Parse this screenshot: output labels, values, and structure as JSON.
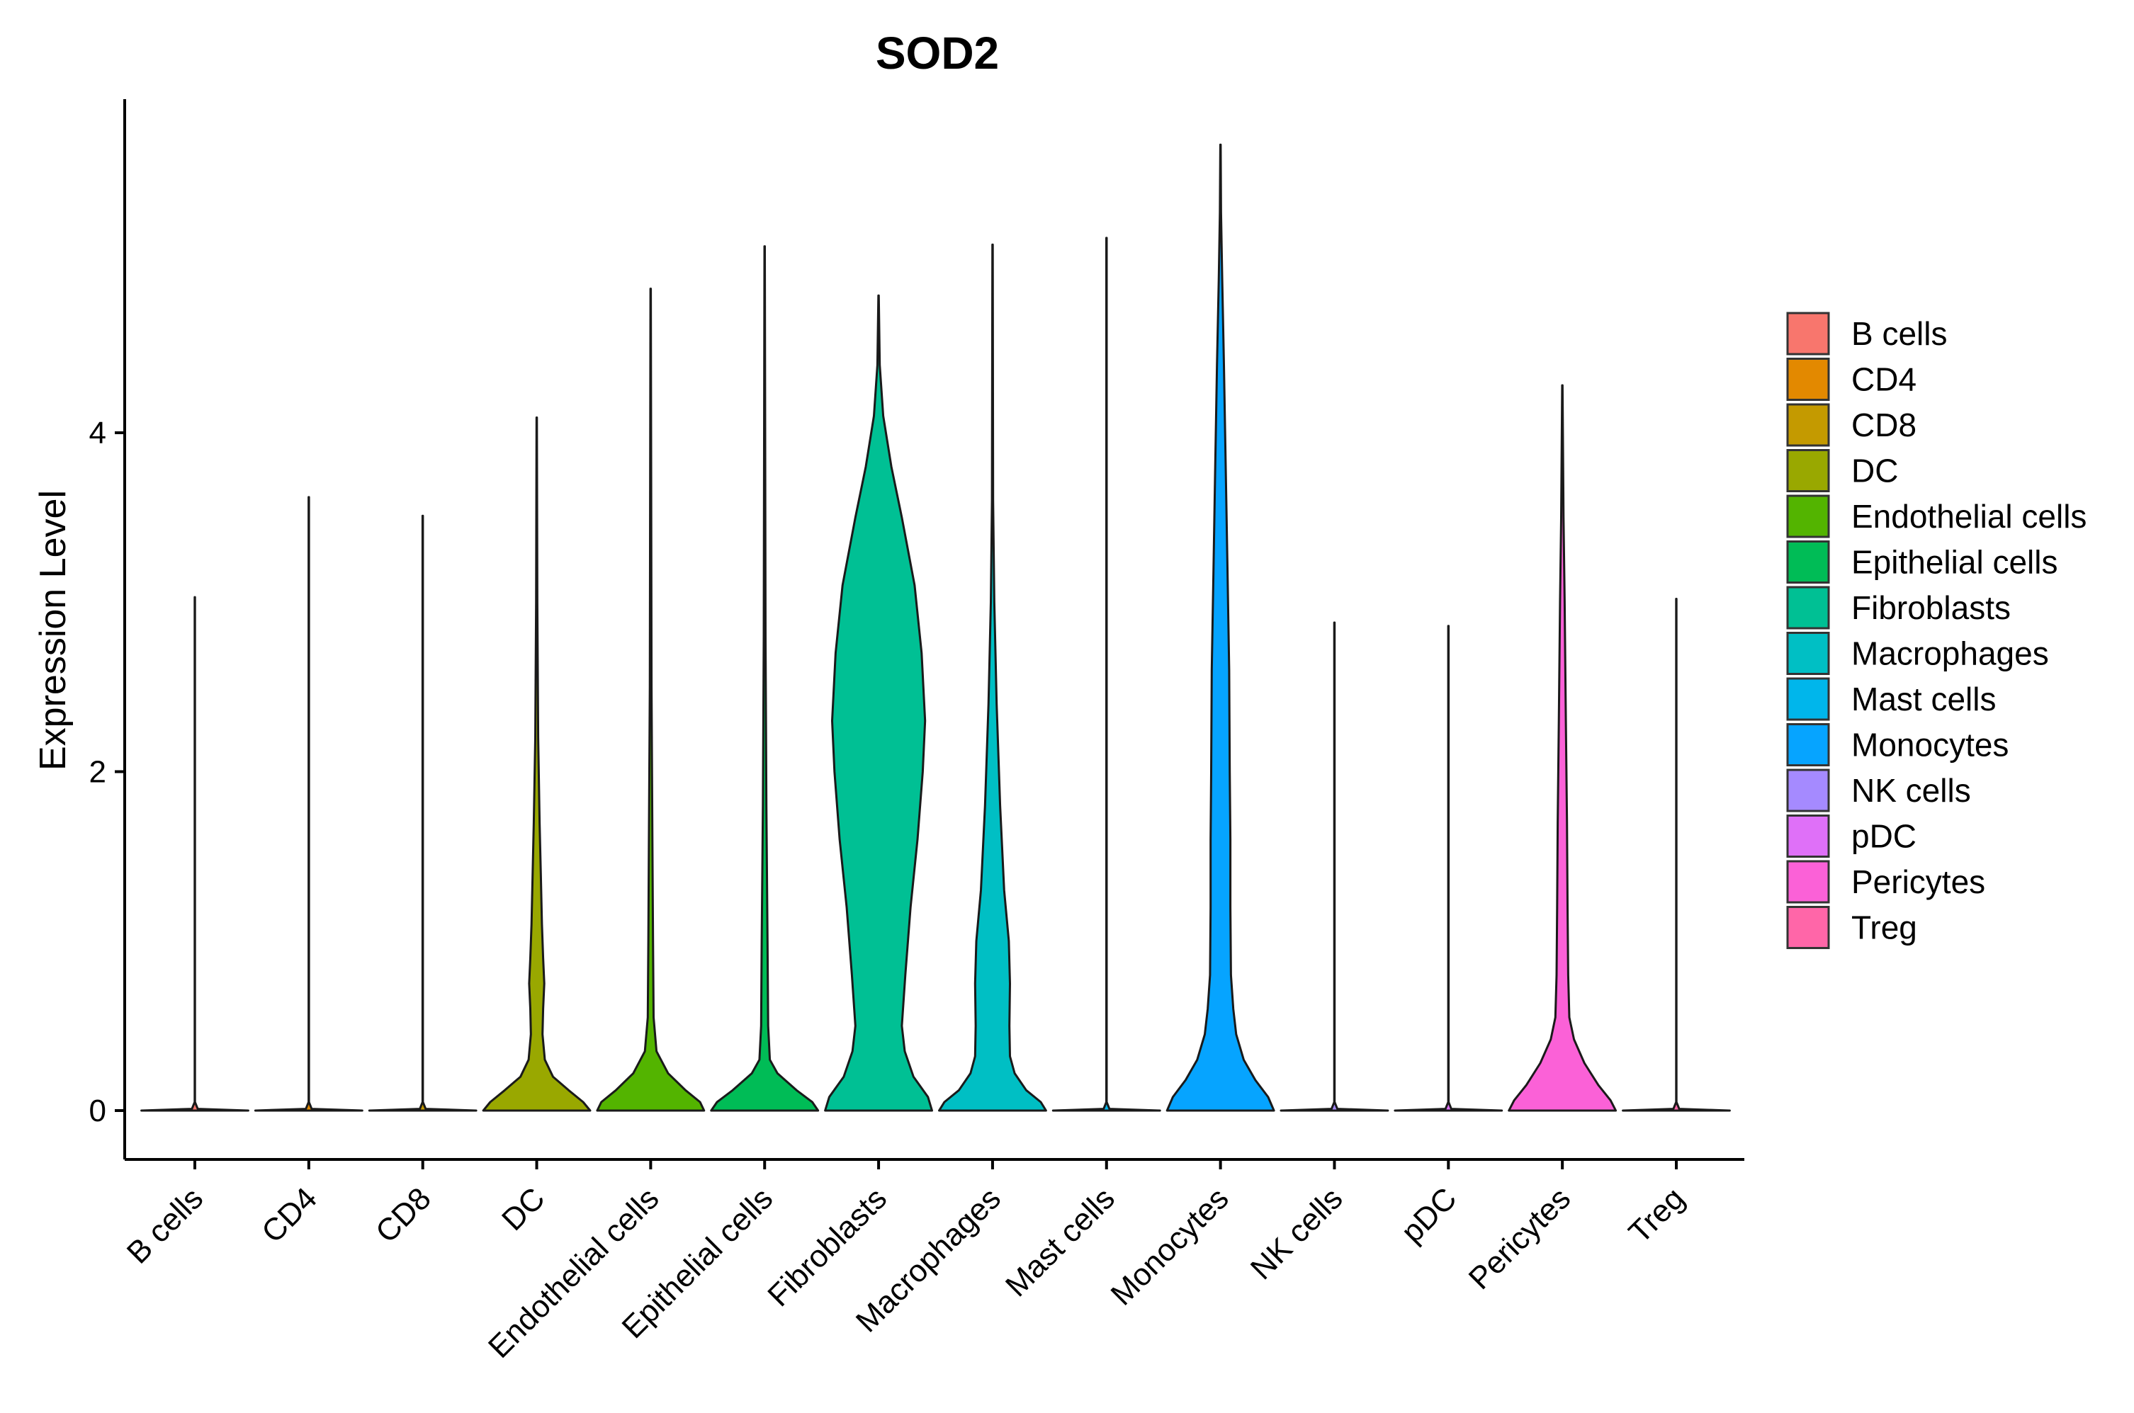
{
  "chart_data": {
    "type": "violin",
    "title": "SOD2",
    "xlabel": "",
    "ylabel": "Expression Level",
    "ylim": [
      -0.28,
      5.9
    ],
    "yticks": [
      0,
      2,
      4
    ],
    "legend_position": "right",
    "categories": [
      "B cells",
      "CD4",
      "CD8",
      "DC",
      "Endothelial cells",
      "Epithelial cells",
      "Fibroblasts",
      "Macrophages",
      "Mast cells",
      "Monocytes",
      "NK cells",
      "pDC",
      "Pericytes",
      "Treg"
    ],
    "colors": [
      "#F8766D",
      "#E38900",
      "#C49A00",
      "#99A800",
      "#53B400",
      "#00BC56",
      "#00C094",
      "#00BFC4",
      "#00B6EB",
      "#06A4FF",
      "#A58AFF",
      "#DF70F8",
      "#FB61D7",
      "#FF66A8"
    ],
    "series": [
      {
        "name": "B cells",
        "max": 3.03,
        "density": [
          [
            0,
            0.92
          ],
          [
            0.01,
            0.05
          ],
          [
            0.05,
            0.003
          ],
          [
            3.03,
            0.003
          ]
        ]
      },
      {
        "name": "CD4",
        "max": 3.62,
        "density": [
          [
            0,
            0.92
          ],
          [
            0.01,
            0.05
          ],
          [
            0.05,
            0.003
          ],
          [
            3.62,
            0.003
          ]
        ]
      },
      {
        "name": "CD8",
        "max": 3.51,
        "density": [
          [
            0,
            0.92
          ],
          [
            0.01,
            0.05
          ],
          [
            0.05,
            0.003
          ],
          [
            3.51,
            0.003
          ]
        ]
      },
      {
        "name": "DC",
        "max": 4.09,
        "density": [
          [
            0,
            0.92
          ],
          [
            0.05,
            0.8
          ],
          [
            0.12,
            0.55
          ],
          [
            0.2,
            0.28
          ],
          [
            0.3,
            0.14
          ],
          [
            0.45,
            0.1
          ],
          [
            0.6,
            0.11
          ],
          [
            0.75,
            0.13
          ],
          [
            0.9,
            0.11
          ],
          [
            1.1,
            0.09
          ],
          [
            1.4,
            0.07
          ],
          [
            1.7,
            0.05
          ],
          [
            2.2,
            0.025
          ],
          [
            3.0,
            0.01
          ],
          [
            4.09,
            0.003
          ]
        ]
      },
      {
        "name": "Endothelial cells",
        "max": 4.85,
        "density": [
          [
            0,
            0.92
          ],
          [
            0.05,
            0.85
          ],
          [
            0.12,
            0.6
          ],
          [
            0.22,
            0.3
          ],
          [
            0.35,
            0.1
          ],
          [
            0.55,
            0.05
          ],
          [
            1.0,
            0.04
          ],
          [
            1.6,
            0.03
          ],
          [
            2.5,
            0.015
          ],
          [
            4.85,
            0.003
          ]
        ]
      },
      {
        "name": "Epithelial cells",
        "max": 5.1,
        "density": [
          [
            0,
            0.92
          ],
          [
            0.05,
            0.82
          ],
          [
            0.12,
            0.55
          ],
          [
            0.22,
            0.22
          ],
          [
            0.3,
            0.09
          ],
          [
            0.5,
            0.06
          ],
          [
            1.0,
            0.05
          ],
          [
            1.8,
            0.03
          ],
          [
            2.8,
            0.015
          ],
          [
            5.1,
            0.003
          ]
        ]
      },
      {
        "name": "Fibroblasts",
        "max": 4.81,
        "density": [
          [
            0,
            0.92
          ],
          [
            0.08,
            0.85
          ],
          [
            0.2,
            0.6
          ],
          [
            0.35,
            0.45
          ],
          [
            0.5,
            0.4
          ],
          [
            0.8,
            0.46
          ],
          [
            1.2,
            0.55
          ],
          [
            1.6,
            0.67
          ],
          [
            2.0,
            0.76
          ],
          [
            2.3,
            0.8
          ],
          [
            2.7,
            0.74
          ],
          [
            3.1,
            0.62
          ],
          [
            3.5,
            0.4
          ],
          [
            3.8,
            0.22
          ],
          [
            4.1,
            0.08
          ],
          [
            4.4,
            0.02
          ],
          [
            4.81,
            0.003
          ]
        ]
      },
      {
        "name": "Macrophages",
        "max": 5.11,
        "density": [
          [
            0,
            0.92
          ],
          [
            0.05,
            0.83
          ],
          [
            0.12,
            0.58
          ],
          [
            0.22,
            0.38
          ],
          [
            0.32,
            0.3
          ],
          [
            0.5,
            0.29
          ],
          [
            0.75,
            0.3
          ],
          [
            1.0,
            0.28
          ],
          [
            1.3,
            0.2
          ],
          [
            1.8,
            0.13
          ],
          [
            2.4,
            0.07
          ],
          [
            3.0,
            0.03
          ],
          [
            3.6,
            0.01
          ],
          [
            5.11,
            0.003
          ]
        ]
      },
      {
        "name": "Mast cells",
        "max": 5.15,
        "density": [
          [
            0,
            0.92
          ],
          [
            0.01,
            0.05
          ],
          [
            0.05,
            0.003
          ],
          [
            5.15,
            0.003
          ]
        ]
      },
      {
        "name": "Monocytes",
        "max": 5.7,
        "density": [
          [
            0,
            0.92
          ],
          [
            0.08,
            0.82
          ],
          [
            0.18,
            0.6
          ],
          [
            0.3,
            0.4
          ],
          [
            0.45,
            0.27
          ],
          [
            0.6,
            0.22
          ],
          [
            0.8,
            0.18
          ],
          [
            1.2,
            0.17
          ],
          [
            1.6,
            0.17
          ],
          [
            2.0,
            0.16
          ],
          [
            2.6,
            0.15
          ],
          [
            3.2,
            0.12
          ],
          [
            3.8,
            0.09
          ],
          [
            4.4,
            0.06
          ],
          [
            4.9,
            0.03
          ],
          [
            5.3,
            0.01
          ],
          [
            5.7,
            0.003
          ]
        ]
      },
      {
        "name": "NK cells",
        "max": 2.88,
        "density": [
          [
            0,
            0.92
          ],
          [
            0.01,
            0.05
          ],
          [
            0.05,
            0.003
          ],
          [
            2.88,
            0.003
          ]
        ]
      },
      {
        "name": "pDC",
        "max": 2.86,
        "density": [
          [
            0,
            0.92
          ],
          [
            0.01,
            0.05
          ],
          [
            0.05,
            0.003
          ],
          [
            2.86,
            0.003
          ]
        ]
      },
      {
        "name": "Pericytes",
        "max": 4.28,
        "density": [
          [
            0,
            0.92
          ],
          [
            0.06,
            0.83
          ],
          [
            0.15,
            0.62
          ],
          [
            0.28,
            0.38
          ],
          [
            0.42,
            0.2
          ],
          [
            0.55,
            0.12
          ],
          [
            0.8,
            0.1
          ],
          [
            1.2,
            0.09
          ],
          [
            1.7,
            0.08
          ],
          [
            2.3,
            0.06
          ],
          [
            3.0,
            0.04
          ],
          [
            3.5,
            0.02
          ],
          [
            4.28,
            0.003
          ]
        ]
      },
      {
        "name": "Treg",
        "max": 3.02,
        "density": [
          [
            0,
            0.92
          ],
          [
            0.01,
            0.05
          ],
          [
            0.05,
            0.003
          ],
          [
            3.02,
            0.003
          ]
        ]
      }
    ]
  }
}
